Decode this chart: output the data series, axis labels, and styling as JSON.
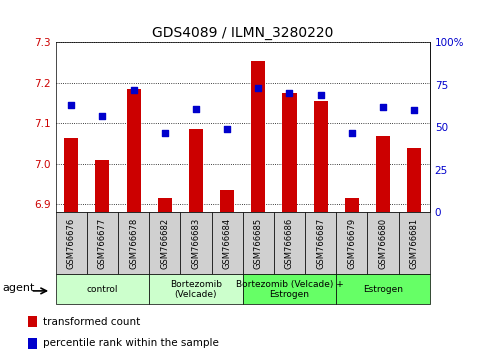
{
  "title": "GDS4089 / ILMN_3280220",
  "samples": [
    "GSM766676",
    "GSM766677",
    "GSM766678",
    "GSM766682",
    "GSM766683",
    "GSM766684",
    "GSM766685",
    "GSM766686",
    "GSM766687",
    "GSM766679",
    "GSM766680",
    "GSM766681"
  ],
  "bar_values": [
    7.065,
    7.01,
    7.185,
    6.915,
    7.085,
    6.935,
    7.255,
    7.175,
    7.155,
    6.915,
    7.07,
    7.04
  ],
  "dot_values": [
    63,
    57,
    72,
    47,
    61,
    49,
    73,
    70,
    69,
    47,
    62,
    60
  ],
  "bar_color": "#cc0000",
  "dot_color": "#0000cc",
  "ylim_left": [
    6.88,
    7.3
  ],
  "ylim_right": [
    0,
    100
  ],
  "yticks_left": [
    6.9,
    7.0,
    7.1,
    7.2,
    7.3
  ],
  "yticks_right": [
    0,
    25,
    50,
    75,
    100
  ],
  "ytick_labels_right": [
    "0",
    "25",
    "50",
    "75",
    "100%"
  ],
  "groups": [
    {
      "label": "control",
      "start": 0,
      "end": 2,
      "color": "#ccffcc"
    },
    {
      "label": "Bortezomib\n(Velcade)",
      "start": 3,
      "end": 5,
      "color": "#ccffcc"
    },
    {
      "label": "Bortezomib (Velcade) +\nEstrogen",
      "start": 6,
      "end": 8,
      "color": "#66ff66"
    },
    {
      "label": "Estrogen",
      "start": 9,
      "end": 11,
      "color": "#66ff66"
    }
  ],
  "agent_label": "agent",
  "legend_bar_label": "transformed count",
  "legend_dot_label": "percentile rank within the sample",
  "baseline": 6.88,
  "background_color": "#ffffff",
  "plot_bg": "#ffffff",
  "tick_label_bg": "#d0d0d0",
  "bar_width": 0.45
}
